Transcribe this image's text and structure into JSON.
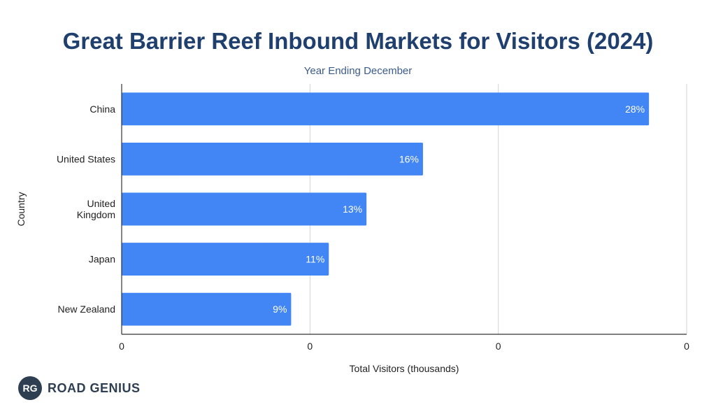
{
  "chart_data": {
    "type": "bar",
    "orientation": "horizontal",
    "title": "Great Barrier Reef Inbound Markets for Visitors (2024)",
    "subtitle": "Year Ending December",
    "xlabel": "Total Visitors (thousands)",
    "ylabel": "Country",
    "categories": [
      [
        "China"
      ],
      [
        "United States"
      ],
      [
        "United",
        "Kingdom"
      ],
      [
        "Japan"
      ],
      [
        "New Zealand"
      ]
    ],
    "values": [
      28,
      16,
      13,
      11,
      9
    ],
    "data_labels": [
      "28%",
      "16%",
      "13%",
      "11%",
      "9%"
    ],
    "xlim": [
      0,
      30
    ],
    "x_tick_labels": [
      "0",
      "0",
      "0",
      "0"
    ],
    "grid": true,
    "legend": "none",
    "bar_color": "#4285f4"
  },
  "branding": {
    "badge": "RG",
    "name": "ROAD GENIUS"
  }
}
